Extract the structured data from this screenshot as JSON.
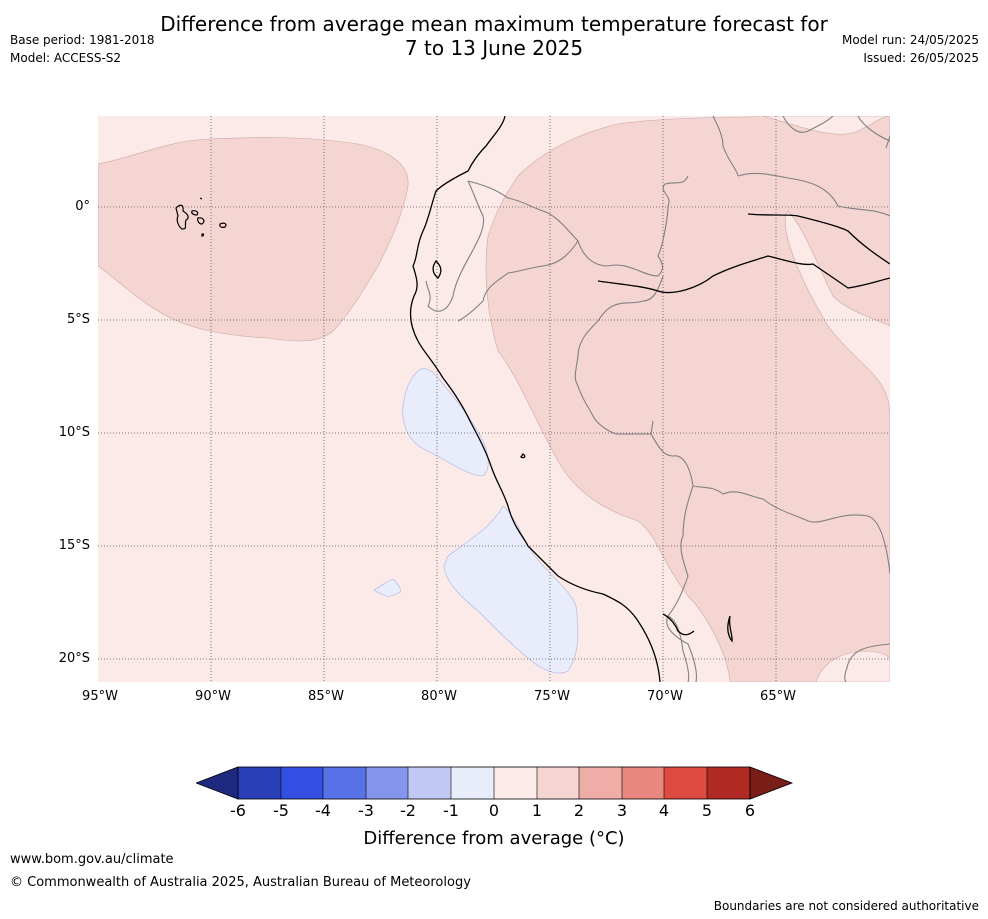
{
  "title": {
    "line1": "Difference from average mean maximum temperature forecast for",
    "line2": "7 to 13 June 2025"
  },
  "meta_left": {
    "base_period": "Base period: 1981-2018",
    "model": "Model: ACCESS-S2"
  },
  "meta_right": {
    "model_run": "Model run: 24/05/2025",
    "issued": "Issued: 26/05/2025"
  },
  "map": {
    "lat_labels": [
      "0°",
      "5°S",
      "10°S",
      "15°S",
      "20°S"
    ],
    "lon_labels": [
      "95°W",
      "90°W",
      "85°W",
      "80°W",
      "75°W",
      "70°W",
      "65°W"
    ],
    "colors": {
      "anomaly_0_to_1": "#fbeae8",
      "anomaly_1_to_2": "#f5d5d2",
      "anomaly_neg1_to_0": "#e9ecfb",
      "coastline": "#000000",
      "border": "#808080",
      "gridline": "#555555"
    }
  },
  "colorbar": {
    "ticks": [
      "-6",
      "-5",
      "-4",
      "-3",
      "-2",
      "-1",
      "0",
      "1",
      "2",
      "3",
      "4",
      "5",
      "6"
    ],
    "colors": [
      "#1d2a80",
      "#2a3eb8",
      "#3450e2",
      "#5a72e8",
      "#8695ec",
      "#c2c8f4",
      "#e9ecfb",
      "#fbeae8",
      "#f5d5d2",
      "#efada8",
      "#e8877f",
      "#de4a3f",
      "#b02a24",
      "#7a1e1a"
    ],
    "label": "Difference from average (°C)"
  },
  "footer": {
    "url": "www.bom.gov.au/climate",
    "copyright": "© Commonwealth of Australia 2025, Australian Bureau of Meteorology",
    "boundaries_note": "Boundaries are not considered authoritative"
  }
}
